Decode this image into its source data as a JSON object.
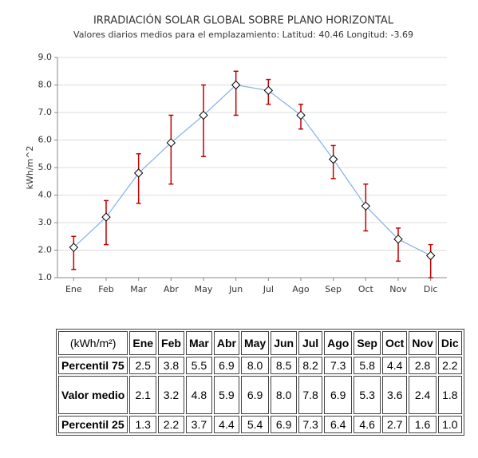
{
  "chart_data": {
    "type": "line-errorbar",
    "title": "IRRADIACIÓN SOLAR GLOBAL SOBRE PLANO HORIZONTAL",
    "subtitle": "Valores diarios medios para el emplazamiento: Latitud: 40.46 Longitud: -3.69",
    "ylabel": "kWh/m^2",
    "categories": [
      "Ene",
      "Feb",
      "Mar",
      "Abr",
      "May",
      "Jun",
      "Jul",
      "Ago",
      "Sep",
      "Oct",
      "Nov",
      "Dic"
    ],
    "series": [
      {
        "name": "Percentil 75",
        "color": "#c00000",
        "values": [
          2.5,
          3.8,
          5.5,
          6.9,
          8.0,
          8.5,
          8.2,
          7.3,
          5.8,
          4.4,
          2.8,
          2.2
        ],
        "value_labels": [
          "2.5",
          "3.8",
          "5.5",
          "6.9",
          "8.0",
          "8.5",
          "8.2",
          "7.3",
          "5.8",
          "4.4",
          "2.8",
          "2.2"
        ]
      },
      {
        "name": "Valor medio",
        "color": "#7fb2e6",
        "values": [
          2.1,
          3.2,
          4.8,
          5.9,
          6.9,
          8.0,
          7.8,
          6.9,
          5.3,
          3.6,
          2.4,
          1.8
        ],
        "value_labels": [
          "2.1",
          "3.2",
          "4.8",
          "5.9",
          "6.9",
          "8.0",
          "7.8",
          "6.9",
          "5.3",
          "3.6",
          "2.4",
          "1.8"
        ]
      },
      {
        "name": "Percentil 25",
        "color": "#c00000",
        "values": [
          1.3,
          2.2,
          3.7,
          4.4,
          5.4,
          6.9,
          7.3,
          6.4,
          4.6,
          2.7,
          1.6,
          1.0
        ],
        "value_labels": [
          "1.3",
          "2.2",
          "3.7",
          "4.4",
          "5.4",
          "6.9",
          "7.3",
          "6.4",
          "4.6",
          "2.7",
          "1.6",
          "1.0"
        ]
      }
    ],
    "ylim": [
      1,
      9
    ],
    "yticks": [
      {
        "value": 1,
        "label": "1.0"
      },
      {
        "value": 2,
        "label": "2.0"
      },
      {
        "value": 3,
        "label": "3.0"
      },
      {
        "value": 4,
        "label": "4.0"
      },
      {
        "value": 5,
        "label": "5.0"
      },
      {
        "value": 6,
        "label": "6.0"
      },
      {
        "value": 7,
        "label": "7.0"
      },
      {
        "value": 8,
        "label": "8.0"
      },
      {
        "value": 9,
        "label": "9.0"
      }
    ],
    "grid": true,
    "table_unit": "(kWh/m²)"
  }
}
